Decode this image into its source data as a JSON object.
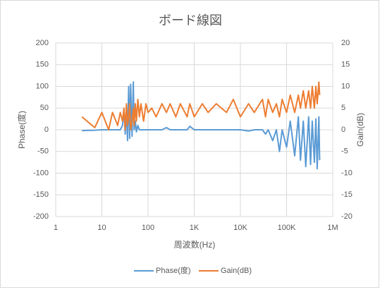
{
  "chart_data": {
    "type": "line",
    "title": "ボード線図",
    "x_label": "周波数(Hz)",
    "y_label": "Phase(度)",
    "y2_label": "Gain(dB)",
    "x_scale": "log",
    "grid": true,
    "legend": "bottom",
    "xlim": [
      1,
      1000000
    ],
    "xticks": [
      1,
      10,
      100,
      {
        "value": 1000,
        "label": "1K"
      },
      {
        "value": 10000,
        "label": "10K"
      },
      {
        "value": 100000,
        "label": "100K"
      },
      {
        "value": 1000000,
        "label": "1M"
      }
    ],
    "ylim": [
      -200,
      200
    ],
    "yticks": [
      -200,
      -150,
      -100,
      -50,
      0,
      50,
      100,
      150,
      200
    ],
    "y2lim": [
      -20,
      20
    ],
    "y2ticks": [
      -20,
      -15,
      -10,
      -5,
      0,
      5,
      10,
      15,
      20
    ],
    "x": [
      3.7,
      7,
      10,
      14,
      17,
      22,
      25,
      28,
      30,
      32,
      34,
      36,
      38,
      40,
      42,
      45,
      48,
      50,
      53,
      56,
      60,
      65,
      70,
      80,
      90,
      100,
      120,
      150,
      200,
      250,
      300,
      400,
      500,
      700,
      800,
      1000,
      1500,
      2000,
      3000,
      5000,
      7000,
      10000,
      15000,
      20000,
      30000,
      35000,
      40000,
      50000,
      60000,
      70000,
      80000,
      100000,
      120000,
      150000,
      180000,
      200000,
      230000,
      260000,
      300000,
      330000,
      360000,
      400000,
      430000,
      460000,
      500000,
      520000
    ],
    "series": [
      {
        "name": "Phase(度)",
        "color": "#5b9bd5",
        "axis": "y",
        "values": [
          -2,
          -1,
          0,
          0,
          0,
          0,
          0,
          10,
          45,
          -10,
          50,
          -25,
          100,
          -20,
          105,
          -15,
          110,
          0,
          20,
          -5,
          10,
          0,
          0,
          0,
          0,
          0,
          0,
          0,
          0,
          5,
          0,
          0,
          0,
          0,
          8,
          0,
          0,
          0,
          0,
          0,
          0,
          0,
          -3,
          0,
          0,
          -10,
          0,
          -25,
          0,
          -50,
          0,
          -40,
          20,
          -60,
          30,
          -70,
          20,
          -85,
          30,
          -80,
          20,
          -75,
          25,
          -90,
          30,
          -70
        ]
      },
      {
        "name": "Gain(dB)",
        "color": "#ed7d31",
        "axis": "y2",
        "values": [
          3,
          0.5,
          4,
          0,
          4,
          1,
          4,
          2,
          5,
          0,
          6,
          1,
          3,
          6,
          0,
          2,
          5,
          1,
          6,
          2,
          7,
          3,
          6,
          2,
          6,
          4,
          5,
          3,
          6,
          4,
          6,
          3,
          6,
          3,
          6,
          3,
          6,
          4,
          6,
          4,
          7,
          3,
          6,
          4,
          7,
          3,
          7,
          4,
          6,
          3,
          7,
          4,
          8,
          4,
          8,
          5,
          9,
          5,
          9,
          5,
          10,
          5,
          10,
          6,
          11,
          8
        ]
      }
    ]
  }
}
